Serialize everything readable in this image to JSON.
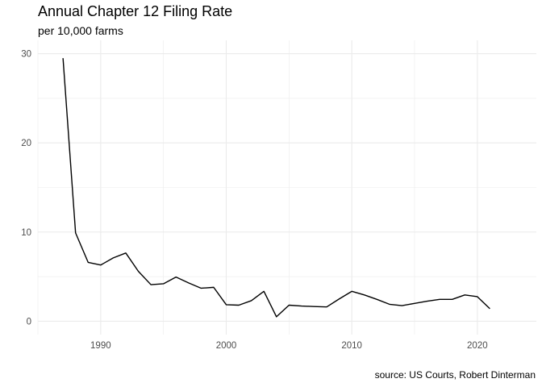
{
  "chart_data": {
    "type": "line",
    "title": "Annual Chapter 12 Filing Rate",
    "subtitle": "per 10,000 farms",
    "caption": "source: US Courts, Robert Dinterman",
    "xlabel": "",
    "ylabel": "",
    "xlim": [
      1985,
      2024.7
    ],
    "ylim": [
      -1.5,
      31.5
    ],
    "x_ticks": [
      1990,
      2000,
      2010,
      2020
    ],
    "x_tick_labels": [
      "1990",
      "2000",
      "2010",
      "2020"
    ],
    "y_ticks": [
      0,
      10,
      20,
      30
    ],
    "y_tick_labels": [
      "0",
      "10",
      "20",
      "30"
    ],
    "grid": true,
    "line_color": "#000000",
    "grid_color": "#ebebeb",
    "x": [
      1987,
      1988,
      1989,
      1990,
      1991,
      1992,
      1993,
      1994,
      1995,
      1996,
      1997,
      1998,
      1999,
      2000,
      2001,
      2002,
      2003,
      2004,
      2005,
      2006,
      2007,
      2008,
      2009,
      2010,
      2011,
      2012,
      2013,
      2014,
      2015,
      2016,
      2017,
      2018,
      2019,
      2020,
      2021
    ],
    "values": [
      29.5,
      9.9,
      6.6,
      6.3,
      7.1,
      7.65,
      5.6,
      4.1,
      4.2,
      4.95,
      4.3,
      3.7,
      3.8,
      1.85,
      1.8,
      2.3,
      3.35,
      0.5,
      1.8,
      1.7,
      1.65,
      1.6,
      2.5,
      3.35,
      2.95,
      2.45,
      1.9,
      1.75,
      2.0,
      2.25,
      2.45,
      2.45,
      2.95,
      2.75,
      1.4
    ]
  }
}
